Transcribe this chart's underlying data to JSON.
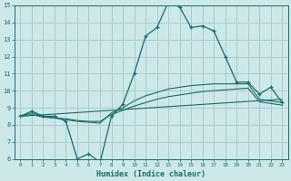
{
  "xlabel": "Humidex (Indice chaleur)",
  "xlim": [
    -0.5,
    23.5
  ],
  "ylim": [
    6,
    15
  ],
  "xticks": [
    0,
    1,
    2,
    3,
    4,
    5,
    6,
    7,
    8,
    9,
    10,
    11,
    12,
    13,
    14,
    15,
    16,
    17,
    18,
    19,
    20,
    21,
    22,
    23
  ],
  "yticks": [
    6,
    7,
    8,
    9,
    10,
    11,
    12,
    13,
    14,
    15
  ],
  "bg_color": "#cce8e8",
  "grid_color": "#aacccc",
  "line_color": "#1a6b6b",
  "main_x": [
    0,
    1,
    2,
    3,
    4,
    5,
    6,
    7,
    8,
    9,
    10,
    11,
    12,
    13,
    14,
    15,
    16,
    17,
    18,
    19,
    20,
    21,
    22,
    23
  ],
  "main_y": [
    8.5,
    8.8,
    8.5,
    8.5,
    8.2,
    6.0,
    6.3,
    5.8,
    8.5,
    9.2,
    11.0,
    13.2,
    13.7,
    15.2,
    14.9,
    13.7,
    13.8,
    13.5,
    12.0,
    10.5,
    10.5,
    9.8,
    10.2,
    9.3
  ],
  "line2_x": [
    0,
    1,
    2,
    3,
    4,
    5,
    6,
    7,
    8,
    9,
    10,
    11,
    12,
    13,
    14,
    15,
    16,
    17,
    18,
    19,
    20,
    21,
    22,
    23
  ],
  "line2_y": [
    8.5,
    8.7,
    8.5,
    8.4,
    8.3,
    8.2,
    8.15,
    8.1,
    8.7,
    9.0,
    9.4,
    9.7,
    9.9,
    10.1,
    10.2,
    10.3,
    10.35,
    10.4,
    10.4,
    10.4,
    10.4,
    9.5,
    9.4,
    9.3
  ],
  "line3_x": [
    0,
    1,
    2,
    3,
    4,
    5,
    6,
    7,
    8,
    9,
    10,
    11,
    12,
    13,
    14,
    15,
    16,
    17,
    18,
    19,
    20,
    21,
    22,
    23
  ],
  "line3_y": [
    8.5,
    8.6,
    8.45,
    8.4,
    8.35,
    8.25,
    8.2,
    8.2,
    8.6,
    8.85,
    9.1,
    9.3,
    9.5,
    9.65,
    9.75,
    9.85,
    9.95,
    10.0,
    10.05,
    10.1,
    10.15,
    9.35,
    9.25,
    9.15
  ],
  "line4_x": [
    0,
    23
  ],
  "line4_y": [
    8.5,
    9.5
  ]
}
